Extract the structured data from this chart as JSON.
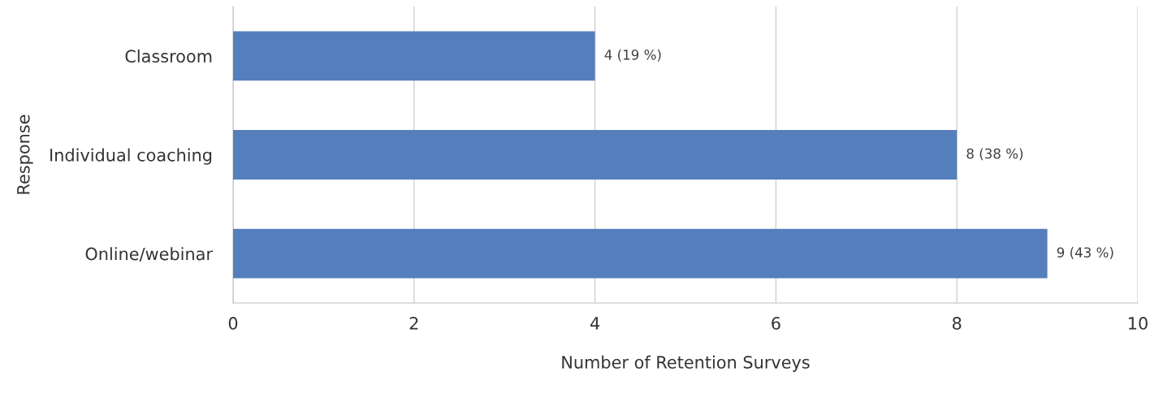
{
  "chart_data": {
    "type": "bar",
    "orientation": "horizontal",
    "categories": [
      "Classroom",
      "Individual coaching",
      "Online/webinar"
    ],
    "values": [
      4,
      8,
      9
    ],
    "value_labels": [
      "4 (19 %)",
      "8 (38 %)",
      "9 (43 %)"
    ],
    "color": "#557fbc",
    "xlabel": "Number of Retention Surveys",
    "ylabel": "Response",
    "xlim": [
      0,
      10
    ],
    "xticks": [
      0,
      2,
      4,
      6,
      8,
      10
    ],
    "grid": "x",
    "legend": false
  }
}
